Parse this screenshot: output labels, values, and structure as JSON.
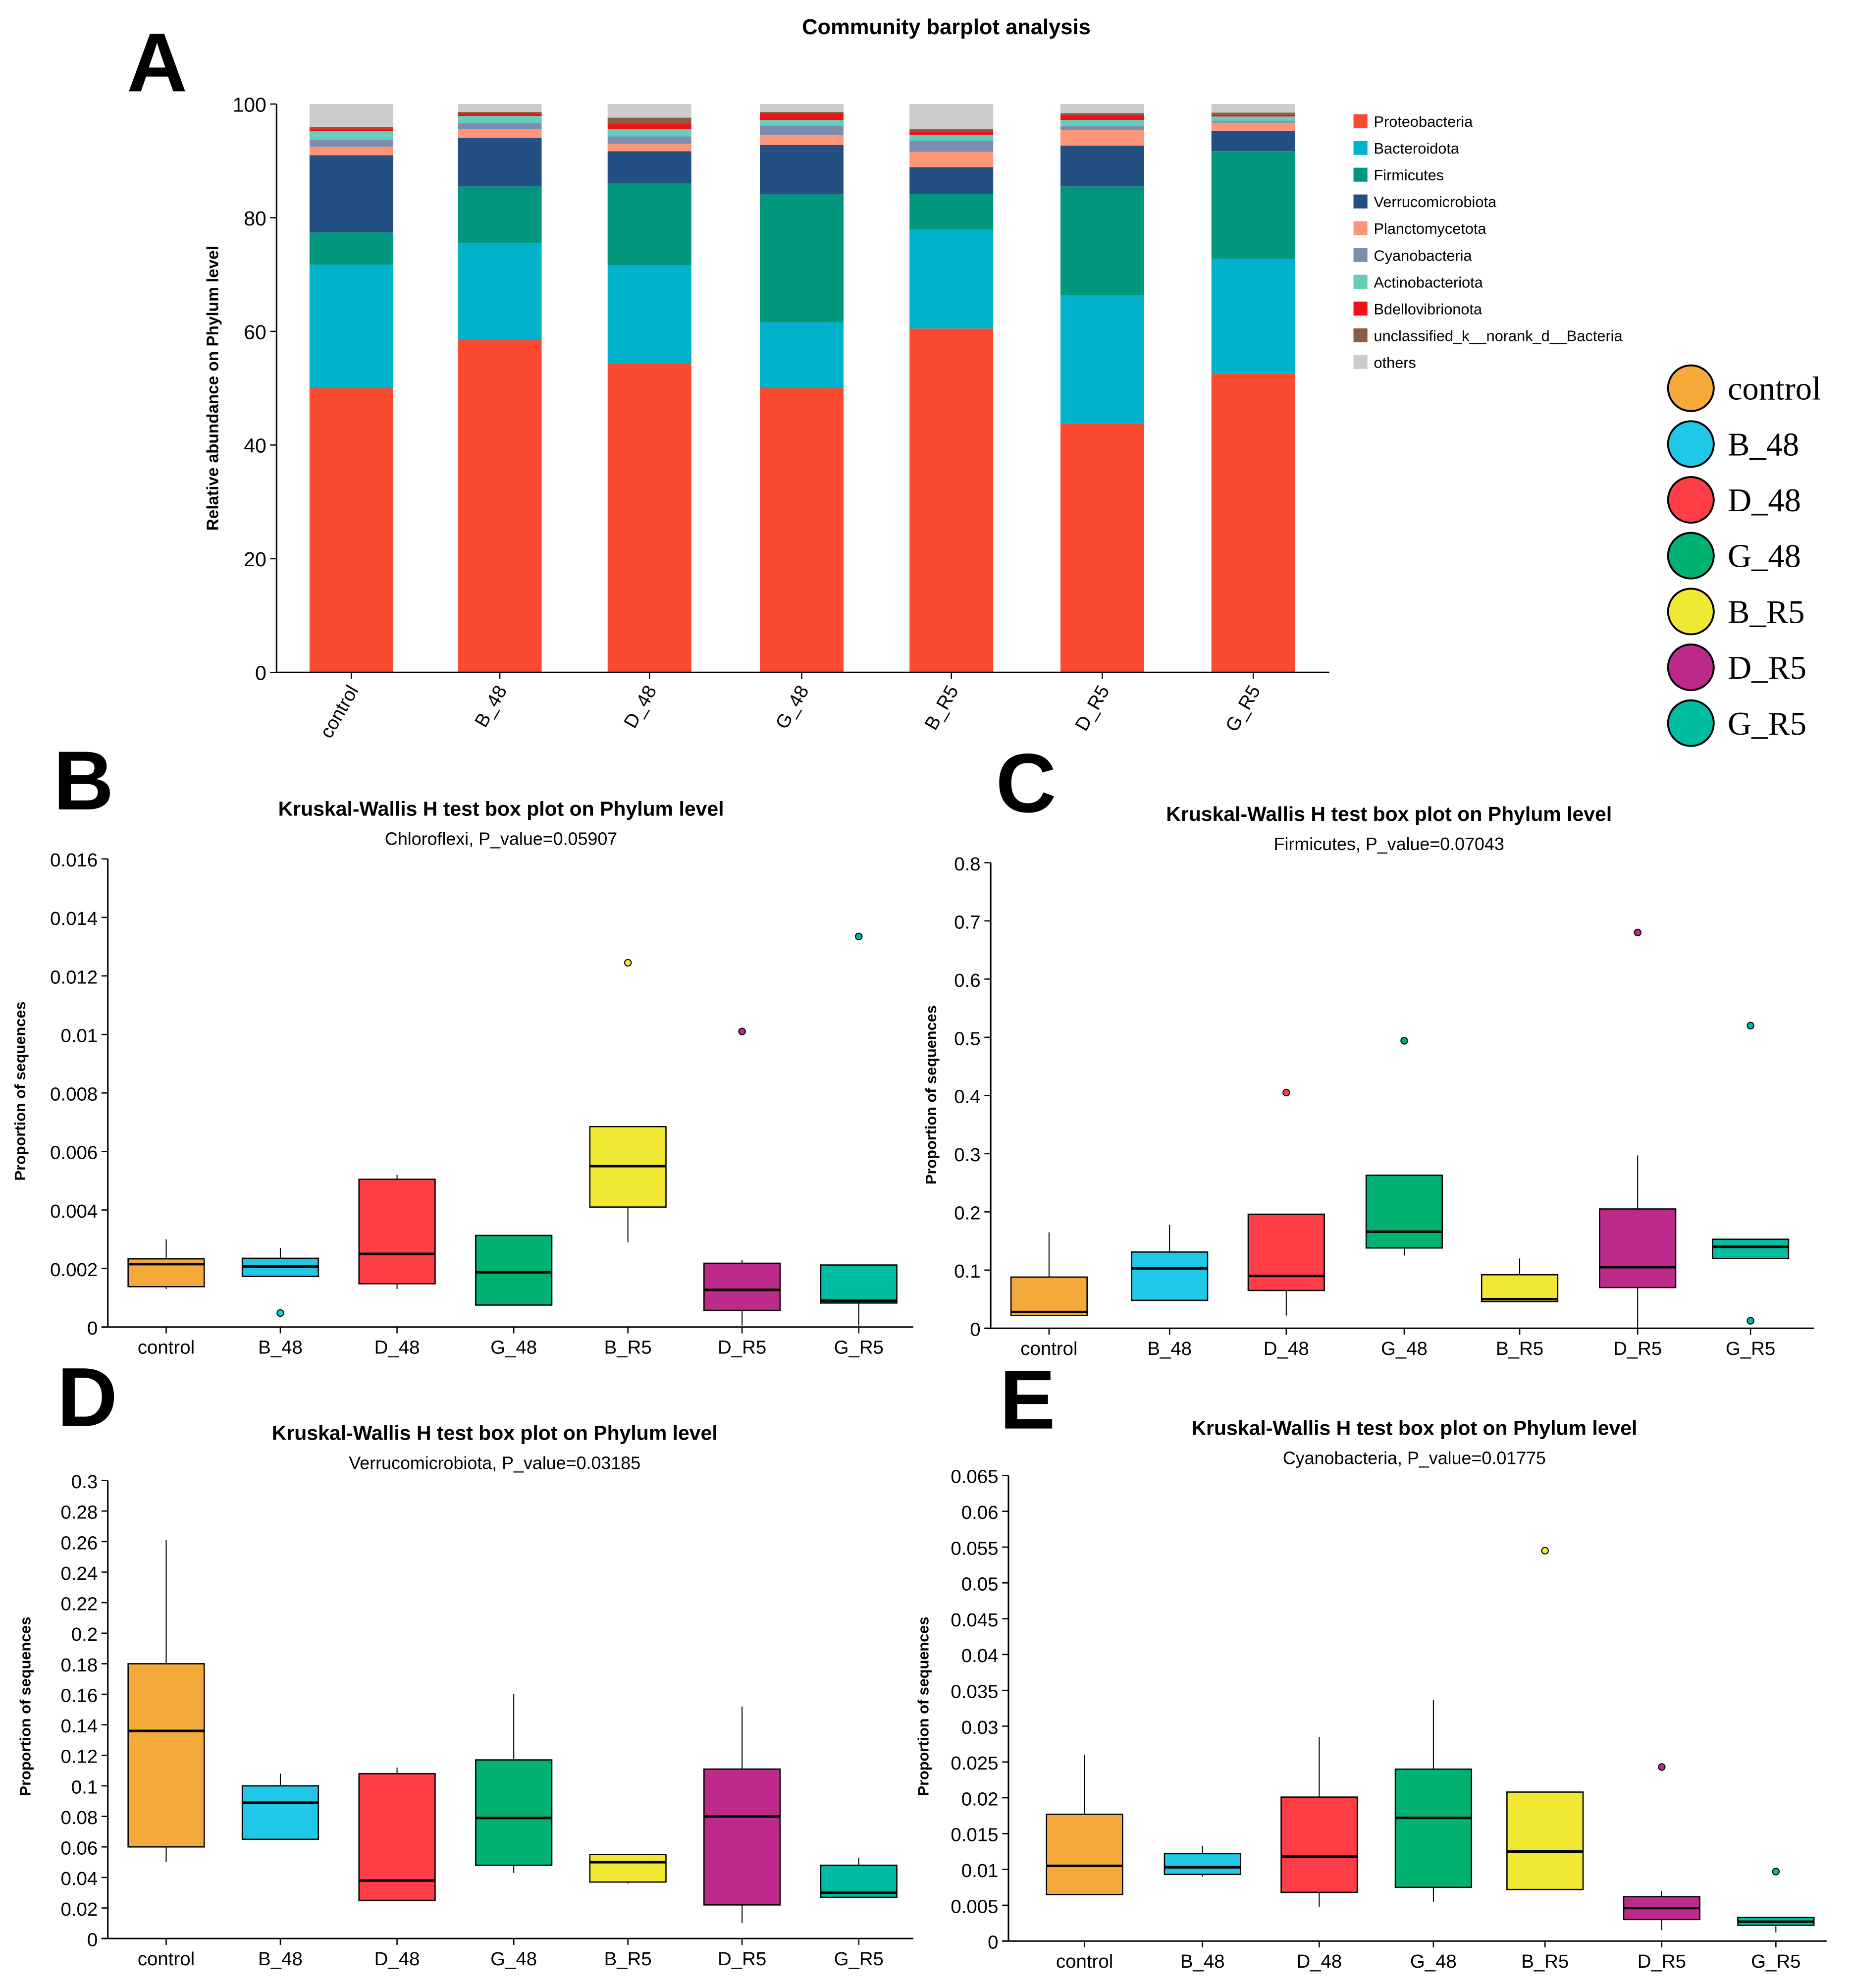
{
  "group_colors": {
    "control": "#F5A93B",
    "B_48": "#1EC8E6",
    "D_48": "#FF3D47",
    "G_48": "#00B171",
    "B_R5": "#F0E833",
    "D_R5": "#BD2B8A",
    "G_R5": "#00BCA3"
  },
  "group_legend": [
    "control",
    "B_48",
    "D_48",
    "G_48",
    "B_R5",
    "D_R5",
    "G_R5"
  ],
  "chart_data": [
    {
      "panel": "A",
      "type": "bar",
      "stacked": true,
      "title": "Community barplot analysis",
      "xlabel": "",
      "ylabel": "Relative abundance on Phylum level",
      "ylim": [
        0,
        100
      ],
      "yticks": [
        0,
        20,
        40,
        60,
        80,
        100
      ],
      "legend_position": "right",
      "categories": [
        "control",
        "B_48",
        "D_48",
        "G_48",
        "B_R5",
        "D_R5",
        "G_R5"
      ],
      "series": [
        {
          "name": "Proteobacteria",
          "color": "#FA4A30",
          "values": [
            50,
            58.5,
            54.4,
            50,
            60.5,
            43.8,
            52.6
          ]
        },
        {
          "name": "Bacteroidota",
          "color": "#00B3CA",
          "values": [
            21.7,
            17,
            17.2,
            11.6,
            17.4,
            22.5,
            20.2
          ]
        },
        {
          "name": "Firmicutes",
          "color": "#00977D",
          "values": [
            5.7,
            10,
            14.4,
            22.5,
            6.3,
            19.2,
            18.9
          ]
        },
        {
          "name": "Verrucomicrobiota",
          "color": "#234F82",
          "values": [
            13.6,
            8.5,
            5.7,
            8.7,
            4.7,
            7.2,
            3.6
          ]
        },
        {
          "name": "Planctomycetota",
          "color": "#FD9679",
          "values": [
            1.5,
            1.6,
            1.3,
            1.7,
            2.7,
            2.7,
            1.4
          ]
        },
        {
          "name": "Cyanobacteria",
          "color": "#7D8DB0",
          "values": [
            1.2,
            1,
            1.3,
            1.7,
            1.9,
            0.7,
            0.3
          ]
        },
        {
          "name": "Actinobacteriota",
          "color": "#66CDBA",
          "values": [
            1.5,
            1.3,
            1.3,
            1,
            1.1,
            1.1,
            0.8
          ]
        },
        {
          "name": "Bdellovibrionota",
          "color": "#EE1118",
          "values": [
            0.5,
            0.4,
            0.9,
            1.1,
            0.5,
            0.8,
            0.3
          ]
        },
        {
          "name": "unclassified_k__norank_d__Bacteria",
          "color": "#8A5D40",
          "values": [
            0.3,
            0.3,
            1.1,
            0.3,
            0.5,
            0.4,
            0.4
          ]
        },
        {
          "name": "others",
          "color": "#CCCCCC",
          "values": [
            4,
            1.4,
            2.4,
            1.4,
            4.4,
            1.6,
            1.5
          ]
        }
      ]
    },
    {
      "panel": "B",
      "type": "box",
      "title": "Kruskal-Wallis H test box plot on Phylum level",
      "subtitle": "Chloroflexi, P_value=0.05907",
      "ylabel": "Proportion of sequences",
      "ylim": [
        0,
        0.016
      ],
      "yticks": [
        "0",
        "0.002",
        "0.004",
        "0.006",
        "0.008",
        "0.01",
        "0.012",
        "0.014",
        "0.016"
      ],
      "categories": [
        "control",
        "B_48",
        "D_48",
        "G_48",
        "B_R5",
        "D_R5",
        "G_R5"
      ],
      "boxes": [
        {
          "q1": 0.00138,
          "median": 0.00215,
          "q3": 0.00233,
          "low": 0.0013,
          "high": 0.003,
          "outliers": []
        },
        {
          "q1": 0.00173,
          "median": 0.00207,
          "q3": 0.00235,
          "low": 0.00173,
          "high": 0.0027,
          "outliers": [
            0.00048
          ]
        },
        {
          "q1": 0.00148,
          "median": 0.0025,
          "q3": 0.00505,
          "low": 0.0013,
          "high": 0.0052,
          "outliers": []
        },
        {
          "q1": 0.00075,
          "median": 0.00187,
          "q3": 0.00313,
          "low": 0.00075,
          "high": 0.00313,
          "outliers": []
        },
        {
          "q1": 0.0041,
          "median": 0.0055,
          "q3": 0.00685,
          "low": 0.0029,
          "high": 0.00685,
          "outliers": [
            0.01245
          ]
        },
        {
          "q1": 0.00057,
          "median": 0.00127,
          "q3": 0.00218,
          "low": 5e-05,
          "high": 0.0023,
          "outliers": [
            0.0101
          ]
        },
        {
          "q1": 0.00082,
          "median": 0.0009,
          "q3": 0.00212,
          "low": 5e-05,
          "high": 0.00212,
          "outliers": [
            0.01335
          ]
        }
      ]
    },
    {
      "panel": "C",
      "type": "box",
      "title": "Kruskal-Wallis H test box plot on Phylum level",
      "subtitle": "Firmicutes, P_value=0.07043",
      "ylabel": "Proportion of sequences",
      "ylim": [
        0,
        0.8
      ],
      "yticks": [
        "0",
        "0.1",
        "0.2",
        "0.3",
        "0.4",
        "0.5",
        "0.6",
        "0.7",
        "0.8"
      ],
      "categories": [
        "control",
        "B_48",
        "D_48",
        "G_48",
        "B_R5",
        "D_R5",
        "G_R5"
      ],
      "boxes": [
        {
          "q1": 0.022,
          "median": 0.028,
          "q3": 0.088,
          "low": 0.022,
          "high": 0.165,
          "outliers": []
        },
        {
          "q1": 0.048,
          "median": 0.103,
          "q3": 0.131,
          "low": 0.048,
          "high": 0.178,
          "outliers": []
        },
        {
          "q1": 0.065,
          "median": 0.09,
          "q3": 0.196,
          "low": 0.022,
          "high": 0.196,
          "outliers": [
            0.405
          ]
        },
        {
          "q1": 0.138,
          "median": 0.166,
          "q3": 0.263,
          "low": 0.125,
          "high": 0.263,
          "outliers": [
            0.494
          ]
        },
        {
          "q1": 0.046,
          "median": 0.05,
          "q3": 0.092,
          "low": 0.046,
          "high": 0.12,
          "outliers": []
        },
        {
          "q1": 0.07,
          "median": 0.105,
          "q3": 0.205,
          "low": 0.0,
          "high": 0.297,
          "outliers": [
            0.68
          ]
        },
        {
          "q1": 0.12,
          "median": 0.14,
          "q3": 0.153,
          "low": 0.12,
          "high": 0.153,
          "outliers": [
            0.52,
            0.013
          ]
        }
      ]
    },
    {
      "panel": "D",
      "type": "box",
      "title": "Kruskal-Wallis H test box plot on Phylum level",
      "subtitle": "Verrucomicrobiota, P_value=0.03185",
      "ylabel": "Proportion of sequences",
      "ylim": [
        0,
        0.3
      ],
      "yticks": [
        "0",
        "0.02",
        "0.04",
        "0.06",
        "0.08",
        "0.1",
        "0.12",
        "0.14",
        "0.16",
        "0.18",
        "0.2",
        "0.22",
        "0.24",
        "0.26",
        "0.28",
        "0.3"
      ],
      "categories": [
        "control",
        "B_48",
        "D_48",
        "G_48",
        "B_R5",
        "D_R5",
        "G_R5"
      ],
      "boxes": [
        {
          "q1": 0.06,
          "median": 0.136,
          "q3": 0.18,
          "low": 0.05,
          "high": 0.261,
          "outliers": []
        },
        {
          "q1": 0.065,
          "median": 0.089,
          "q3": 0.1,
          "low": 0.065,
          "high": 0.108,
          "outliers": []
        },
        {
          "q1": 0.025,
          "median": 0.038,
          "q3": 0.108,
          "low": 0.025,
          "high": 0.112,
          "outliers": []
        },
        {
          "q1": 0.048,
          "median": 0.079,
          "q3": 0.117,
          "low": 0.043,
          "high": 0.16,
          "outliers": []
        },
        {
          "q1": 0.037,
          "median": 0.05,
          "q3": 0.055,
          "low": 0.036,
          "high": 0.055,
          "outliers": []
        },
        {
          "q1": 0.022,
          "median": 0.08,
          "q3": 0.111,
          "low": 0.01,
          "high": 0.152,
          "outliers": []
        },
        {
          "q1": 0.027,
          "median": 0.03,
          "q3": 0.048,
          "low": 0.027,
          "high": 0.053,
          "outliers": []
        }
      ]
    },
    {
      "panel": "E",
      "type": "box",
      "title": "Kruskal-Wallis H test box plot on Phylum level",
      "subtitle": "Cyanobacteria, P_value=0.01775",
      "ylabel": "Proportion of sequences",
      "ylim": [
        0,
        0.065
      ],
      "yticks": [
        "0",
        "0.005",
        "0.01",
        "0.015",
        "0.02",
        "0.025",
        "0.03",
        "0.035",
        "0.04",
        "0.045",
        "0.05",
        "0.055",
        "0.06",
        "0.065"
      ],
      "categories": [
        "control",
        "B_48",
        "D_48",
        "G_48",
        "B_R5",
        "D_R5",
        "G_R5"
      ],
      "boxes": [
        {
          "q1": 0.0065,
          "median": 0.0105,
          "q3": 0.0177,
          "low": 0.0065,
          "high": 0.026,
          "outliers": []
        },
        {
          "q1": 0.0093,
          "median": 0.0103,
          "q3": 0.0122,
          "low": 0.009,
          "high": 0.0133,
          "outliers": []
        },
        {
          "q1": 0.0068,
          "median": 0.0118,
          "q3": 0.0201,
          "low": 0.0048,
          "high": 0.0285,
          "outliers": []
        },
        {
          "q1": 0.0075,
          "median": 0.0172,
          "q3": 0.024,
          "low": 0.0055,
          "high": 0.0337,
          "outliers": []
        },
        {
          "q1": 0.0072,
          "median": 0.0125,
          "q3": 0.0208,
          "low": 0.0072,
          "high": 0.0208,
          "outliers": [
            0.0545
          ]
        },
        {
          "q1": 0.003,
          "median": 0.0046,
          "q3": 0.0062,
          "low": 0.0015,
          "high": 0.007,
          "outliers": [
            0.0243
          ]
        },
        {
          "q1": 0.0022,
          "median": 0.0027,
          "q3": 0.0033,
          "low": 0.0012,
          "high": 0.0033,
          "outliers": [
            0.0097
          ]
        }
      ]
    }
  ]
}
